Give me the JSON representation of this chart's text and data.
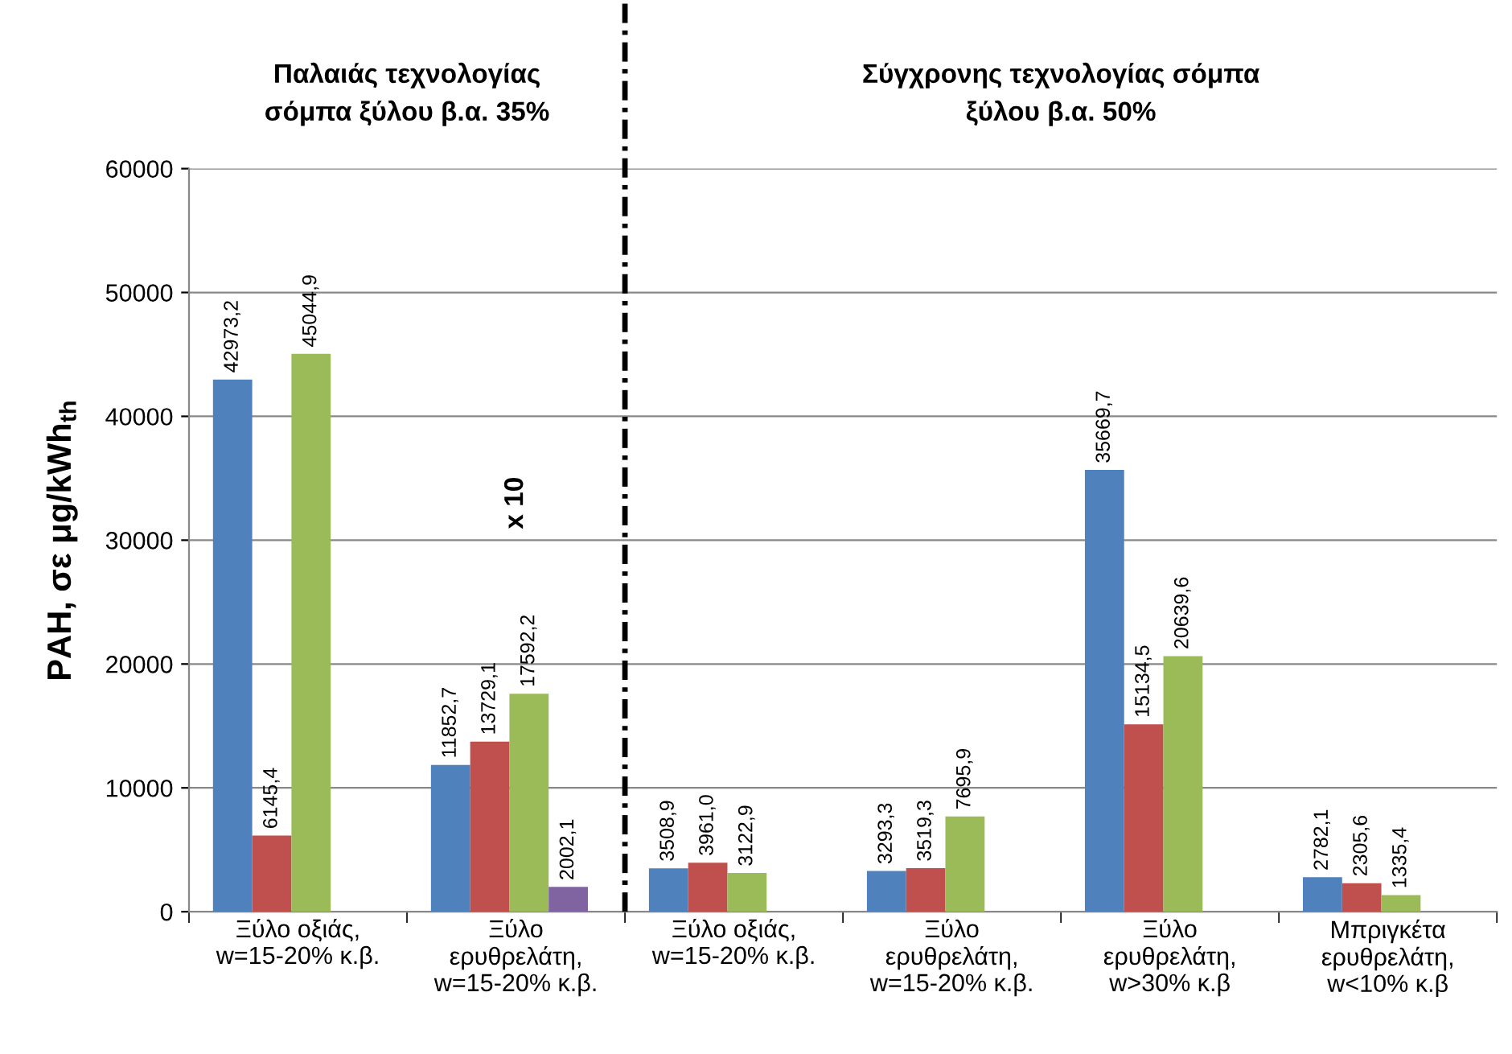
{
  "chart_data": {
    "type": "bar",
    "ylabel": "PAH, σε μg/kWh$_{th}$",
    "categories": [
      "Ξύλο οξιάς,\nw=15-20% κ.β.",
      "Ξύλο\nερυθρελάτη,\nw=15-20% κ.β.",
      "Ξύλο οξιάς,\nw=15-20% κ.β.",
      "Ξύλο\nερυθρελάτη,\nw=15-20% κ.β.",
      "Ξύλο\nερυθρελάτη,\nw>30% κ.β",
      "Μπριγκέτα\nερυθρελάτη,\nw<10% κ.β"
    ],
    "series": [
      {
        "color": "#4f81bd",
        "values": [
          42973.2,
          11852.7,
          3508.9,
          3293.3,
          35669.7,
          2782.1
        ],
        "value_labels": [
          "42973,2",
          "11852,7",
          "3508,9",
          "3293,3",
          "35669,7",
          "2782,1"
        ]
      },
      {
        "color": "#c0504d",
        "values": [
          6145.4,
          13729.1,
          3961.0,
          3519.3,
          15134.5,
          2305.6
        ],
        "value_labels": [
          "6145,4",
          "13729,1",
          "3961,0",
          "3519,3",
          "15134,5",
          "2305,6"
        ]
      },
      {
        "color": "#9bbb59",
        "values": [
          45044.9,
          17592.2,
          3122.9,
          7695.9,
          20639.6,
          1335.4
        ],
        "value_labels": [
          "45044,9",
          "17592,2",
          "3122,9",
          "7695,9",
          "20639,6",
          "1335,4"
        ]
      },
      {
        "color": "#8064a2",
        "values": [
          null,
          2002.1,
          null,
          null,
          null,
          null
        ],
        "value_labels": [
          null,
          "2002,1",
          null,
          null,
          null,
          null
        ]
      }
    ],
    "ylim": [
      0,
      60000
    ],
    "yticks": [
      0,
      10000,
      20000,
      30000,
      40000,
      50000,
      60000
    ],
    "grid": "y",
    "legend": false,
    "annotations": [
      "Παλαιάς τεχνολογίας\nσόμπα ξύλου β.α. 35%",
      "Σύγχρονης τεχνολογίας σόμπα\nξύλου β.α. 50%",
      "x 10"
    ]
  }
}
